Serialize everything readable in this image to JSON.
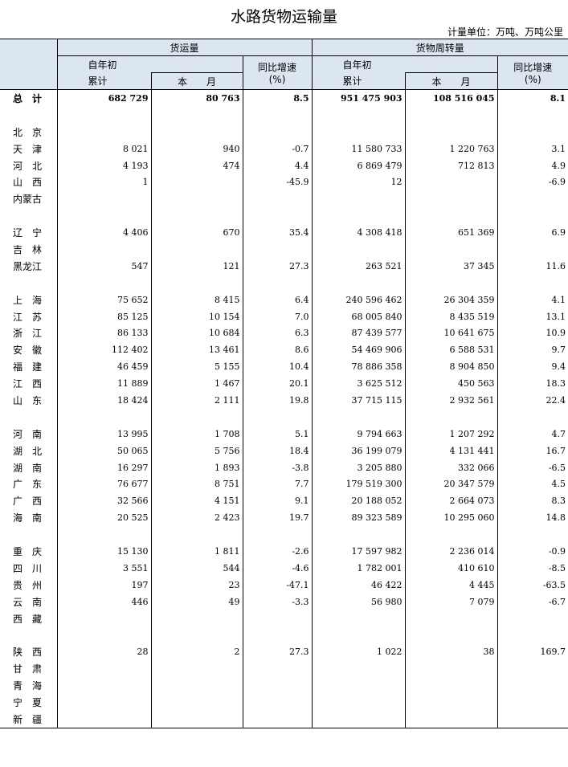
{
  "title": "水路货物运输量",
  "unit": "计量单位：万吨、万吨公里",
  "headers": {
    "freight": "货运量",
    "turnover": "货物周转量",
    "ytd": "自年初",
    "cumulative": "累计",
    "month": "本　　月",
    "yoy": "同比增速",
    "pct": "(%)"
  },
  "rows": [
    {
      "name": "总　计",
      "a": "682 729",
      "b": "80 763",
      "c": "8.5",
      "d": "951 475 903",
      "e": "108 516 045",
      "f": "8.1",
      "total": true
    },
    {
      "name": "",
      "a": "",
      "b": "",
      "c": "",
      "d": "",
      "e": "",
      "f": ""
    },
    {
      "name": "北　京",
      "a": "",
      "b": "",
      "c": "",
      "d": "",
      "e": "",
      "f": ""
    },
    {
      "name": "天　津",
      "a": "8 021",
      "b": "940",
      "c": "-0.7",
      "d": "11 580 733",
      "e": "1 220 763",
      "f": "3.1"
    },
    {
      "name": "河　北",
      "a": "4 193",
      "b": "474",
      "c": "4.4",
      "d": "6 869 479",
      "e": "712 813",
      "f": "4.9"
    },
    {
      "name": "山　西",
      "a": "1",
      "b": "",
      "c": "-45.9",
      "d": "12",
      "e": "",
      "f": "-6.9"
    },
    {
      "name": "内蒙古",
      "a": "",
      "b": "",
      "c": "",
      "d": "",
      "e": "",
      "f": ""
    },
    {
      "name": "",
      "a": "",
      "b": "",
      "c": "",
      "d": "",
      "e": "",
      "f": ""
    },
    {
      "name": "辽　宁",
      "a": "4 406",
      "b": "670",
      "c": "35.4",
      "d": "4 308 418",
      "e": "651 369",
      "f": "6.9"
    },
    {
      "name": "吉　林",
      "a": "",
      "b": "",
      "c": "",
      "d": "",
      "e": "",
      "f": ""
    },
    {
      "name": "黑龙江",
      "a": "547",
      "b": "121",
      "c": "27.3",
      "d": "263 521",
      "e": "37 345",
      "f": "11.6"
    },
    {
      "name": "",
      "a": "",
      "b": "",
      "c": "",
      "d": "",
      "e": "",
      "f": ""
    },
    {
      "name": "上　海",
      "a": "75 652",
      "b": "8 415",
      "c": "6.4",
      "d": "240 596 462",
      "e": "26 304 359",
      "f": "4.1"
    },
    {
      "name": "江　苏",
      "a": "85 125",
      "b": "10 154",
      "c": "7.0",
      "d": "68 005 840",
      "e": "8 435 519",
      "f": "13.1"
    },
    {
      "name": "浙　江",
      "a": "86 133",
      "b": "10 684",
      "c": "6.3",
      "d": "87 439 577",
      "e": "10 641 675",
      "f": "10.9"
    },
    {
      "name": "安　徽",
      "a": "112 402",
      "b": "13 461",
      "c": "8.6",
      "d": "54 469 906",
      "e": "6 588 531",
      "f": "9.7"
    },
    {
      "name": "福　建",
      "a": "46 459",
      "b": "5 155",
      "c": "10.4",
      "d": "78 886 358",
      "e": "8 904 850",
      "f": "9.4"
    },
    {
      "name": "江　西",
      "a": "11 889",
      "b": "1 467",
      "c": "20.1",
      "d": "3 625 512",
      "e": "450 563",
      "f": "18.3"
    },
    {
      "name": "山　东",
      "a": "18 424",
      "b": "2 111",
      "c": "19.8",
      "d": "37 715 115",
      "e": "2 932 561",
      "f": "22.4"
    },
    {
      "name": "",
      "a": "",
      "b": "",
      "c": "",
      "d": "",
      "e": "",
      "f": ""
    },
    {
      "name": "河　南",
      "a": "13 995",
      "b": "1 708",
      "c": "5.1",
      "d": "9 794 663",
      "e": "1 207 292",
      "f": "4.7"
    },
    {
      "name": "湖　北",
      "a": "50 065",
      "b": "5 756",
      "c": "18.4",
      "d": "36 199 079",
      "e": "4 131 441",
      "f": "16.7"
    },
    {
      "name": "湖　南",
      "a": "16 297",
      "b": "1 893",
      "c": "-3.8",
      "d": "3 205 880",
      "e": "332 066",
      "f": "-6.5"
    },
    {
      "name": "广　东",
      "a": "76 677",
      "b": "8 751",
      "c": "7.7",
      "d": "179 519 300",
      "e": "20 347 579",
      "f": "4.5"
    },
    {
      "name": "广　西",
      "a": "32 566",
      "b": "4 151",
      "c": "9.1",
      "d": "20 188 052",
      "e": "2 664 073",
      "f": "8.3"
    },
    {
      "name": "海　南",
      "a": "20 525",
      "b": "2 423",
      "c": "19.7",
      "d": "89 323 589",
      "e": "10 295 060",
      "f": "14.8"
    },
    {
      "name": "",
      "a": "",
      "b": "",
      "c": "",
      "d": "",
      "e": "",
      "f": ""
    },
    {
      "name": "重　庆",
      "a": "15 130",
      "b": "1 811",
      "c": "-2.6",
      "d": "17 597 982",
      "e": "2 236 014",
      "f": "-0.9"
    },
    {
      "name": "四　川",
      "a": "3 551",
      "b": "544",
      "c": "-4.6",
      "d": "1 782 001",
      "e": "410 610",
      "f": "-8.5"
    },
    {
      "name": "贵　州",
      "a": "197",
      "b": "23",
      "c": "-47.1",
      "d": "46 422",
      "e": "4 445",
      "f": "-63.5"
    },
    {
      "name": "云　南",
      "a": "446",
      "b": "49",
      "c": "-3.3",
      "d": "56 980",
      "e": "7 079",
      "f": "-6.7"
    },
    {
      "name": "西　藏",
      "a": "",
      "b": "",
      "c": "",
      "d": "",
      "e": "",
      "f": ""
    },
    {
      "name": "",
      "a": "",
      "b": "",
      "c": "",
      "d": "",
      "e": "",
      "f": ""
    },
    {
      "name": "陕　西",
      "a": "28",
      "b": "2",
      "c": "27.3",
      "d": "1 022",
      "e": "38",
      "f": "169.7"
    },
    {
      "name": "甘　肃",
      "a": "",
      "b": "",
      "c": "",
      "d": "",
      "e": "",
      "f": ""
    },
    {
      "name": "青　海",
      "a": "",
      "b": "",
      "c": "",
      "d": "",
      "e": "",
      "f": ""
    },
    {
      "name": "宁　夏",
      "a": "",
      "b": "",
      "c": "",
      "d": "",
      "e": "",
      "f": ""
    },
    {
      "name": "新　疆",
      "a": "",
      "b": "",
      "c": "",
      "d": "",
      "e": "",
      "f": ""
    }
  ]
}
